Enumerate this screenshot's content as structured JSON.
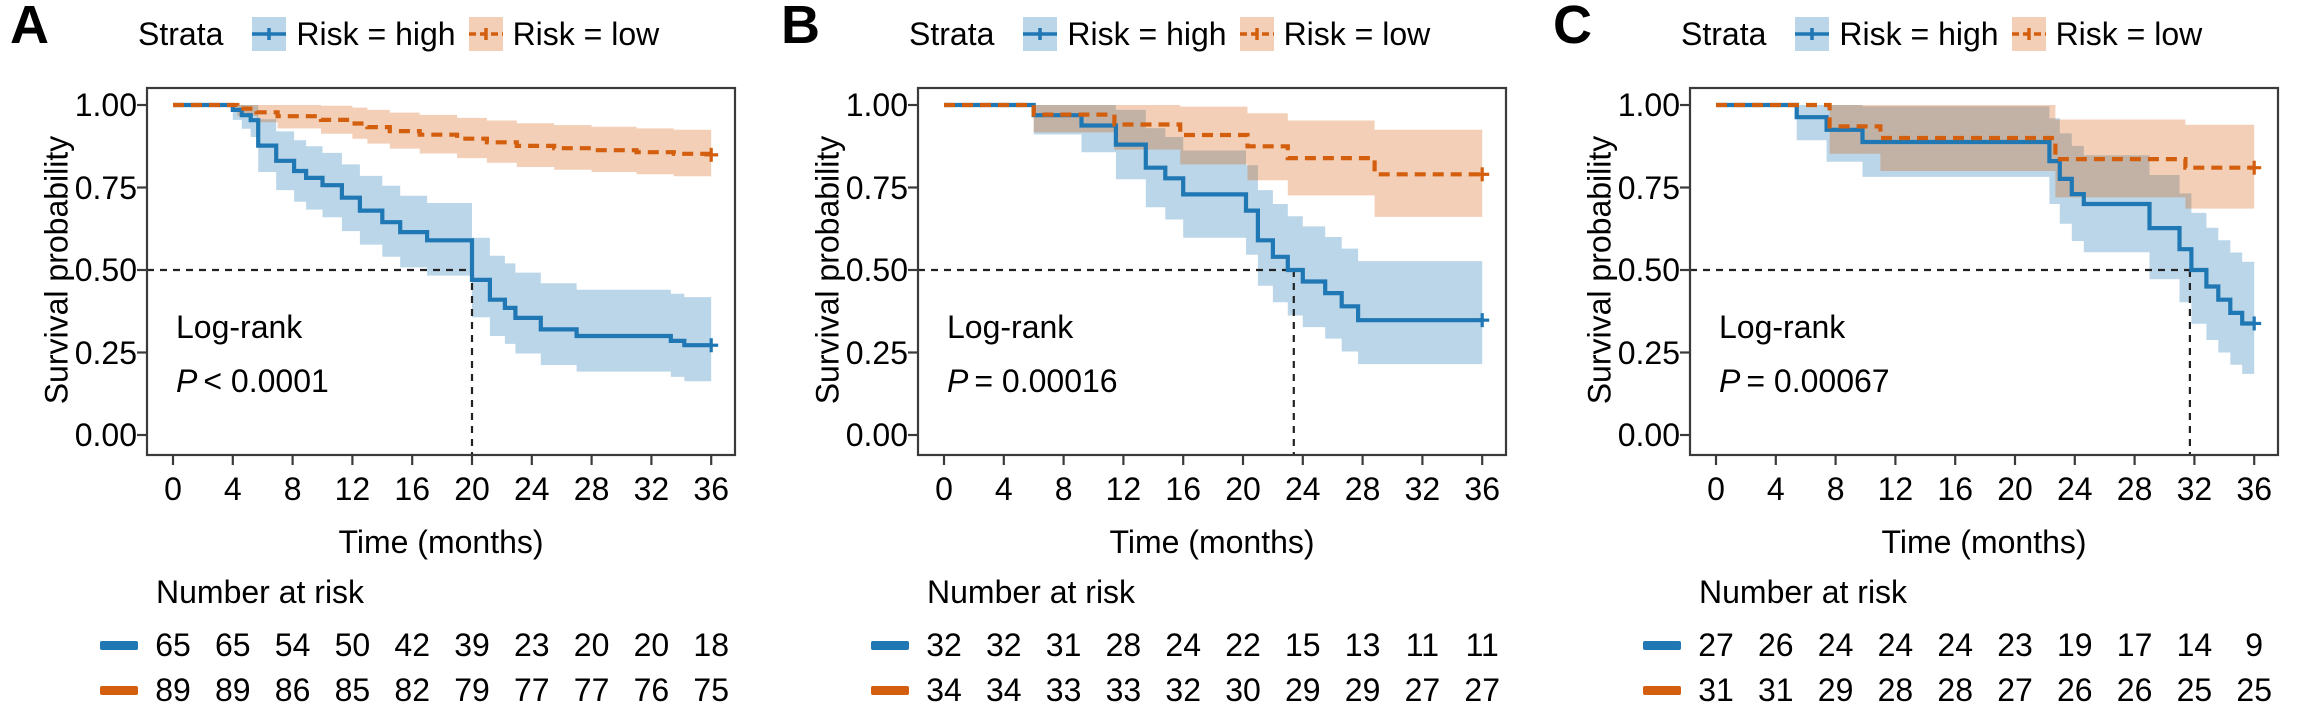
{
  "figure": {
    "ylabel": "Survival probability",
    "xlabel": "Time (months)",
    "legend_title": "Strata",
    "legend_items": [
      {
        "id": "high",
        "label": "Risk = high"
      },
      {
        "id": "low",
        "label": "Risk = low"
      }
    ],
    "risk_table_title": "Number at risk",
    "x_ticks": [
      0,
      4,
      8,
      12,
      16,
      20,
      24,
      28,
      32,
      36
    ],
    "y_ticks": [
      "1.00",
      "0.75",
      "0.50",
      "0.25",
      "0.00"
    ],
    "x_range": [
      0,
      36
    ],
    "y_range": [
      0,
      1
    ],
    "grid": false,
    "legend_position": "top",
    "censor_marker": "+",
    "colors": {
      "high": "#1f77b4",
      "low": "#d35f0e",
      "axis": "#3a3a3a",
      "reference": "#222222",
      "text": "#000000",
      "band_opacity": 0.3
    }
  },
  "chart_data": [
    {
      "panel": "A",
      "type": "line",
      "subtype": "kaplan-meier-step",
      "title": "A",
      "log_rank_label": "Log-rank",
      "p_symbol": "P",
      "p_value": "< 0.0001",
      "median_survival_time": 20,
      "series": [
        {
          "name": "Risk = high",
          "color_key": "high",
          "line_style": "solid",
          "censor_times": [
            36
          ],
          "steps": [
            [
              0,
              1,
              1,
              1
            ],
            [
              4,
              0.985,
              0.955,
              1
            ],
            [
              4.6,
              0.969,
              0.928,
              1
            ],
            [
              5.2,
              0.954,
              0.903,
              1
            ],
            [
              5.7,
              0.877,
              0.797,
              0.957
            ],
            [
              6.9,
              0.831,
              0.742,
              0.92
            ],
            [
              8.1,
              0.8,
              0.707,
              0.893
            ],
            [
              8.9,
              0.779,
              0.683,
              0.875
            ],
            [
              10,
              0.757,
              0.66,
              0.855
            ],
            [
              11.3,
              0.719,
              0.618,
              0.82
            ],
            [
              12.5,
              0.68,
              0.577,
              0.785
            ],
            [
              14,
              0.645,
              0.54,
              0.755
            ],
            [
              15.2,
              0.615,
              0.508,
              0.725
            ],
            [
              17,
              0.59,
              0.483,
              0.703
            ],
            [
              20,
              0.47,
              0.357,
              0.598
            ],
            [
              21.2,
              0.41,
              0.3,
              0.543
            ],
            [
              22.2,
              0.385,
              0.276,
              0.52
            ],
            [
              22.9,
              0.355,
              0.247,
              0.492
            ],
            [
              24.6,
              0.32,
              0.212,
              0.46
            ],
            [
              27,
              0.3,
              0.192,
              0.44
            ],
            [
              33.3,
              0.285,
              0.176,
              0.428
            ],
            [
              34.2,
              0.272,
              0.163,
              0.418
            ],
            [
              36,
              0.272,
              0.163,
              0.418
            ]
          ]
        },
        {
          "name": "Risk = low",
          "color_key": "low",
          "line_style": "dashed",
          "censor_times": [
            36
          ],
          "steps": [
            [
              0,
              1,
              1,
              1
            ],
            [
              4.3,
              0.989,
              0.967,
              1
            ],
            [
              5.6,
              0.978,
              0.948,
              1
            ],
            [
              7,
              0.966,
              0.929,
              1
            ],
            [
              9.9,
              0.955,
              0.913,
              0.998
            ],
            [
              12,
              0.944,
              0.898,
              0.992
            ],
            [
              13,
              0.933,
              0.883,
              0.985
            ],
            [
              14.5,
              0.921,
              0.868,
              0.977
            ],
            [
              16.5,
              0.91,
              0.853,
              0.97
            ],
            [
              19,
              0.898,
              0.839,
              0.961
            ],
            [
              21,
              0.887,
              0.825,
              0.953
            ],
            [
              23,
              0.876,
              0.812,
              0.945
            ],
            [
              25.5,
              0.869,
              0.804,
              0.939
            ],
            [
              28,
              0.863,
              0.797,
              0.934
            ],
            [
              31,
              0.857,
              0.79,
              0.929
            ],
            [
              33.5,
              0.852,
              0.784,
              0.925
            ],
            [
              36,
              0.849,
              0.78,
              0.923
            ]
          ]
        }
      ],
      "number_at_risk": {
        "high": [
          65,
          65,
          54,
          50,
          42,
          39,
          23,
          20,
          20,
          18
        ],
        "low": [
          89,
          89,
          86,
          85,
          82,
          79,
          77,
          77,
          76,
          75
        ]
      }
    },
    {
      "panel": "B",
      "type": "line",
      "subtype": "kaplan-meier-step",
      "title": "B",
      "log_rank_label": "Log-rank",
      "p_symbol": "P",
      "p_value": "= 0.00016",
      "median_survival_time": 23.4,
      "series": [
        {
          "name": "Risk = high",
          "color_key": "high",
          "line_style": "solid",
          "censor_times": [
            36
          ],
          "steps": [
            [
              0,
              1,
              1,
              1
            ],
            [
              6,
              0.969,
              0.911,
              1
            ],
            [
              9.2,
              0.938,
              0.857,
              1
            ],
            [
              11.5,
              0.88,
              0.775,
              0.985
            ],
            [
              13.5,
              0.81,
              0.69,
              0.93
            ],
            [
              14.8,
              0.778,
              0.653,
              0.903
            ],
            [
              16,
              0.729,
              0.598,
              0.862
            ],
            [
              20.2,
              0.68,
              0.546,
              0.818
            ],
            [
              21,
              0.59,
              0.452,
              0.742
            ],
            [
              22,
              0.54,
              0.402,
              0.7
            ],
            [
              23,
              0.5,
              0.362,
              0.663
            ],
            [
              24,
              0.465,
              0.327,
              0.632
            ],
            [
              25.5,
              0.43,
              0.292,
              0.6
            ],
            [
              26.6,
              0.39,
              0.253,
              0.565
            ],
            [
              27.7,
              0.348,
              0.215,
              0.527
            ],
            [
              36,
              0.348,
              0.215,
              0.527
            ]
          ]
        },
        {
          "name": "Risk = low",
          "color_key": "low",
          "line_style": "dashed",
          "censor_times": [
            36
          ],
          "steps": [
            [
              0,
              1,
              1,
              1
            ],
            [
              6,
              0.971,
              0.917,
              1
            ],
            [
              11.4,
              0.941,
              0.865,
              1
            ],
            [
              15.8,
              0.909,
              0.82,
              0.995
            ],
            [
              20.3,
              0.875,
              0.772,
              0.975
            ],
            [
              23,
              0.839,
              0.726,
              0.953
            ],
            [
              28.8,
              0.79,
              0.661,
              0.925
            ],
            [
              36,
              0.79,
              0.661,
              0.925
            ]
          ]
        }
      ],
      "number_at_risk": {
        "high": [
          32,
          32,
          31,
          28,
          24,
          22,
          15,
          13,
          11,
          11
        ],
        "low": [
          34,
          34,
          33,
          33,
          32,
          30,
          29,
          29,
          27,
          27
        ]
      }
    },
    {
      "panel": "C",
      "type": "line",
      "subtype": "kaplan-meier-step",
      "title": "C",
      "log_rank_label": "Log-rank",
      "p_symbol": "P",
      "p_value": "= 0.00067",
      "median_survival_time": 31.7,
      "series": [
        {
          "name": "Risk = high",
          "color_key": "high",
          "line_style": "solid",
          "censor_times": [
            36
          ],
          "steps": [
            [
              0,
              1,
              1,
              1
            ],
            [
              5.4,
              0.963,
              0.893,
              1
            ],
            [
              7.4,
              0.925,
              0.828,
              1
            ],
            [
              9.8,
              0.888,
              0.782,
              0.996
            ],
            [
              22.3,
              0.83,
              0.7,
              0.96
            ],
            [
              23,
              0.776,
              0.64,
              0.914
            ],
            [
              23.8,
              0.73,
              0.588,
              0.876
            ],
            [
              24.6,
              0.7,
              0.554,
              0.848
            ],
            [
              29,
              0.627,
              0.472,
              0.788
            ],
            [
              31,
              0.563,
              0.402,
              0.732
            ],
            [
              31.8,
              0.5,
              0.337,
              0.673
            ],
            [
              32.8,
              0.45,
              0.288,
              0.628
            ],
            [
              33.6,
              0.41,
              0.25,
              0.59
            ],
            [
              34.4,
              0.37,
              0.213,
              0.553
            ],
            [
              35.2,
              0.338,
              0.185,
              0.525
            ],
            [
              36,
              0.338,
              0.185,
              0.525
            ]
          ]
        },
        {
          "name": "Risk = low",
          "color_key": "low",
          "line_style": "dashed",
          "censor_times": [
            36
          ],
          "steps": [
            [
              0,
              1,
              1,
              1
            ],
            [
              7.6,
              0.935,
              0.852,
              1
            ],
            [
              11,
              0.9,
              0.8,
              1
            ],
            [
              22.7,
              0.836,
              0.72,
              0.956
            ],
            [
              31.4,
              0.81,
              0.686,
              0.94
            ],
            [
              36,
              0.81,
              0.686,
              0.94
            ]
          ]
        }
      ],
      "number_at_risk": {
        "high": [
          27,
          26,
          24,
          24,
          24,
          23,
          19,
          17,
          14,
          9
        ],
        "low": [
          31,
          31,
          29,
          28,
          28,
          27,
          26,
          26,
          25,
          25
        ]
      }
    }
  ]
}
